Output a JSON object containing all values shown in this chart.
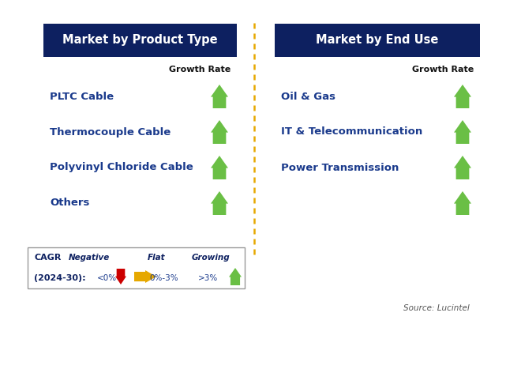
{
  "background_color": "#ffffff",
  "left_header": "Market by Product Type",
  "right_header": "Market by End Use",
  "header_bg_color": "#0d2060",
  "header_text_color": "#ffffff",
  "growth_rate_label": "Growth Rate",
  "left_items": [
    "PLTC Cable",
    "Thermocouple Cable",
    "Polyvinyl Chloride Cable",
    "Others"
  ],
  "right_items": [
    "Oil & Gas",
    "IT & Telecommunication",
    "Power Transmission",
    ""
  ],
  "item_text_color": "#1a3a8c",
  "arrow_up_color": "#6abf45",
  "arrow_down_color": "#cc0000",
  "arrow_flat_color": "#e6a800",
  "divider_color": "#e6a800",
  "source_text": "Source: Lucintel",
  "legend_negative_label": "Negative",
  "legend_negative_value": "<0%",
  "legend_flat_label": "Flat",
  "legend_flat_value": "0%-3%",
  "legend_growing_label": "Growing",
  "legend_growing_value": ">3%",
  "legend_cagr_line1": "CAGR",
  "legend_cagr_line2": "(2024-30):"
}
